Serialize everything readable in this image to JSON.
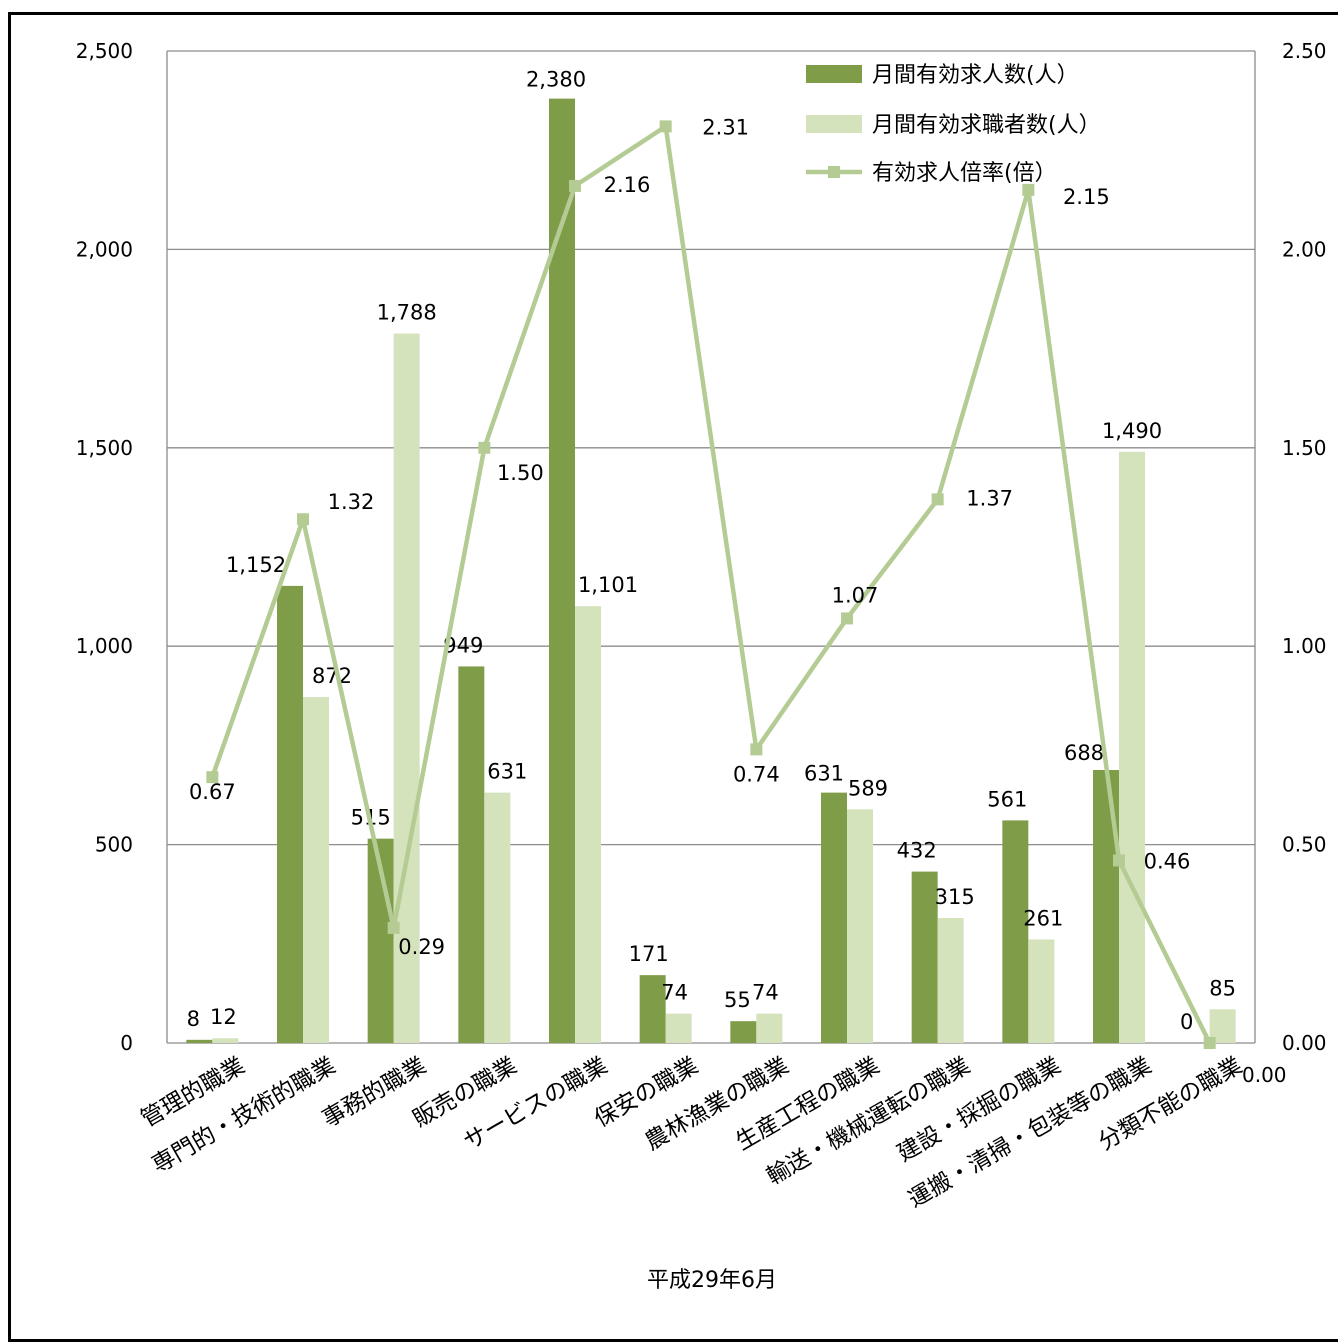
{
  "chart_data": {
    "type": "bar",
    "xlabel": "平成29年6月",
    "categories": [
      "管理的職業",
      "専門的・技術的職業",
      "事務的職業",
      "販売の職業",
      "サービスの職業",
      "保安の職業",
      "農林漁業の職業",
      "生産工程の職業",
      "輸送・機械運転の職業",
      "建設・採掘の職業",
      "運搬・清掃・包装等の職業",
      "分類不能の職業"
    ],
    "series": [
      {
        "name": "月間有効求人数(人）",
        "kind": "bar",
        "axis": "left",
        "color": "#7f9c48",
        "values": [
          8,
          1152,
          515,
          949,
          2380,
          171,
          55,
          631,
          432,
          561,
          688,
          0
        ],
        "labels": [
          "8",
          "1,152",
          "515",
          "949",
          "2,380",
          "171",
          "55",
          "631",
          "432",
          "561",
          "688",
          "0"
        ]
      },
      {
        "name": "月間有効求職者数(人）",
        "kind": "bar",
        "axis": "left",
        "color": "#d5e3bd",
        "values": [
          12,
          872,
          1788,
          631,
          1101,
          74,
          74,
          589,
          315,
          261,
          1490,
          85
        ],
        "labels": [
          "12",
          "872",
          "1,788",
          "631",
          "1,101",
          "74",
          "74",
          "589",
          "315",
          "261",
          "1,490",
          "85"
        ]
      },
      {
        "name": "有効求人倍率(倍）",
        "kind": "line",
        "axis": "right",
        "color": "#b4cc94",
        "values": [
          0.67,
          1.32,
          0.29,
          1.5,
          2.16,
          2.31,
          0.74,
          1.07,
          1.37,
          2.15,
          0.46,
          0.0
        ],
        "labels": [
          "0.67",
          "1.32",
          "0.29",
          "1.50",
          "2.16",
          "2.31",
          "0.74",
          "1.07",
          "1.37",
          "2.15",
          "0.46",
          "0.00"
        ]
      }
    ],
    "y_left": {
      "min": 0,
      "max": 2500,
      "ticks": [
        "0",
        "500",
        "1,000",
        "1,500",
        "2,000",
        "2,500"
      ]
    },
    "y_right": {
      "min": 0,
      "max": 2.5,
      "ticks": [
        "0.00",
        "0.50",
        "1.00",
        "1.50",
        "2.00",
        "2.50"
      ]
    },
    "grid": true,
    "legend_position": "top-right"
  }
}
